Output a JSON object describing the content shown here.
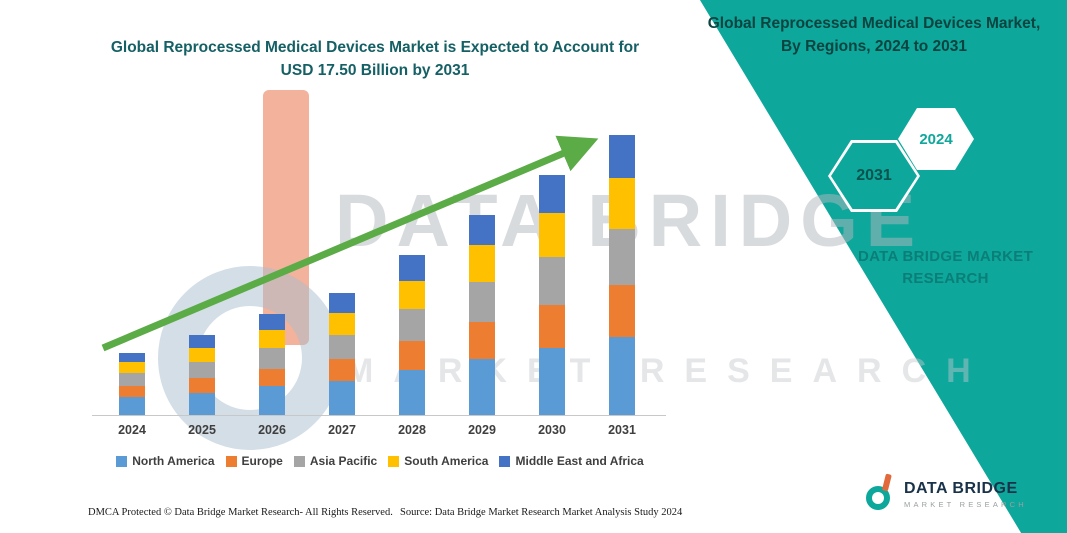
{
  "left_title": "Global Reprocessed Medical Devices Market is Expected to Account for USD 17.50 Billion by 2031",
  "right_panel": {
    "title": "Global Reprocessed Medical Devices Market, By Regions, 2024 to 2031",
    "hexagon_years": [
      "2031",
      "2024"
    ],
    "brand": "DATA BRIDGE MARKET RESEARCH"
  },
  "watermark": {
    "line1": "DATA BRIDGE",
    "line2": "MARKET RESEARCH"
  },
  "chart_data": {
    "type": "bar",
    "stacked": true,
    "title": "Global Reprocessed Medical Devices Market is Expected to Account for USD 17.50 Billion by 2031",
    "categories": [
      "2024",
      "2025",
      "2026",
      "2027",
      "2028",
      "2029",
      "2030",
      "2031"
    ],
    "series": [
      {
        "name": "North America",
        "color": "#5B9BD5",
        "values": [
          1.1,
          1.4,
          1.8,
          2.1,
          2.8,
          3.5,
          4.2,
          4.9
        ]
      },
      {
        "name": "Europe",
        "color": "#ED7D31",
        "values": [
          0.7,
          0.9,
          1.1,
          1.4,
          1.8,
          2.3,
          2.7,
          3.2
        ]
      },
      {
        "name": "Asia Pacific",
        "color": "#A5A5A5",
        "values": [
          0.8,
          1.0,
          1.3,
          1.5,
          2.0,
          2.5,
          3.0,
          3.5
        ]
      },
      {
        "name": "South America",
        "color": "#FFC000",
        "values": [
          0.7,
          0.9,
          1.1,
          1.4,
          1.8,
          2.3,
          2.7,
          3.2
        ]
      },
      {
        "name": "Middle East and Africa",
        "color": "#4472C4",
        "values": [
          0.6,
          0.8,
          1.0,
          1.2,
          1.6,
          1.9,
          2.4,
          2.7
        ]
      }
    ],
    "totals": [
      3.9,
      5.0,
      6.3,
      7.6,
      10.0,
      12.5,
      15.0,
      17.5
    ],
    "unit": "USD Billion (segment values estimated from bar heights; stated total 17.50 by 2031)",
    "ylim": [
      0,
      18
    ],
    "grid": false,
    "legend_position": "bottom",
    "annotations": [
      "green upward trend arrow across bars"
    ]
  },
  "footer": {
    "dmca": "DMCA Protected © Data Bridge Market Research-  All Rights Reserved.",
    "source": "Source: Data Bridge Market Research  Market Analysis Study 2024"
  },
  "logo": {
    "name": "DATA BRIDGE",
    "tagline": "MARKET RESEARCH"
  },
  "colors": {
    "band_teal": "#0EA79B",
    "title_teal": "#156065",
    "arrow_green": "#5BAB47"
  }
}
